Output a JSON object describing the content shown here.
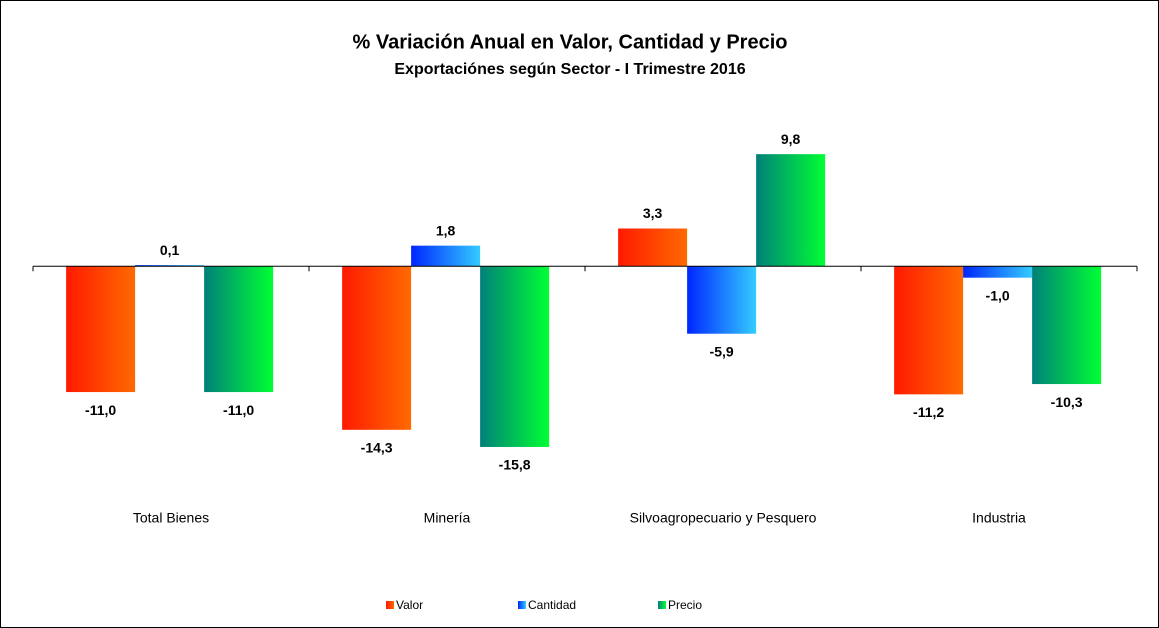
{
  "chart_data": {
    "type": "bar",
    "title": "% Variación Anual en Valor, Cantidad y Precio",
    "subtitle": "Exportaciónes según Sector - I Trimestre 2016",
    "categories": [
      "Total Bienes",
      "Minería",
      "Silvoagropecuario y Pesquero",
      "Industria"
    ],
    "series": [
      {
        "name": "Valor",
        "color": [
          "#ff1a00",
          "#ff6a00"
        ],
        "values": [
          -11.0,
          -14.3,
          3.3,
          -11.2
        ],
        "value_labels": [
          "-11,0",
          "-14,3",
          "3,3",
          "-11,2"
        ]
      },
      {
        "name": "Cantidad",
        "color": [
          "#0026ff",
          "#33ccff"
        ],
        "values": [
          0.1,
          1.8,
          -5.9,
          -1.0
        ],
        "value_labels": [
          "0,1",
          "1,8",
          "-5,9",
          "-1,0"
        ]
      },
      {
        "name": "Precio",
        "color": [
          "#00807a",
          "#00ff33"
        ],
        "values": [
          -11.0,
          -15.8,
          9.8,
          -10.3
        ],
        "value_labels": [
          "-11,0",
          "-15,8",
          "9,8",
          "-10,3"
        ]
      }
    ],
    "ylim": [
      -20,
      12
    ],
    "legend": "bottom"
  }
}
